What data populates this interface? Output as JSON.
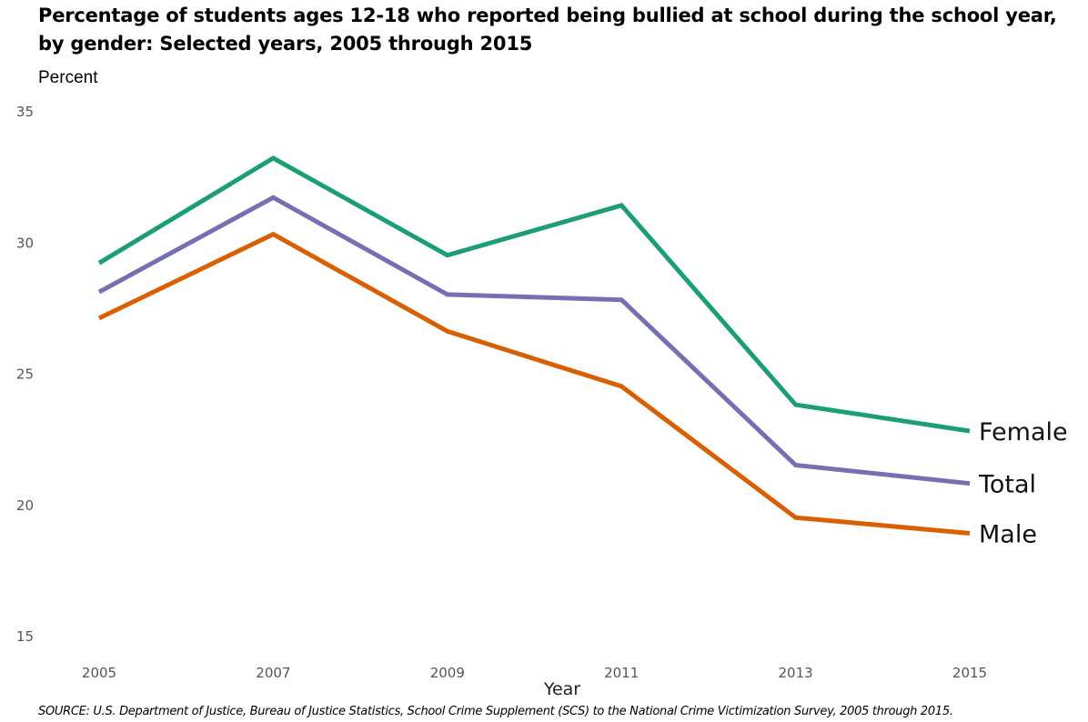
{
  "chart_data": {
    "type": "line",
    "title": "Percentage of students ages 12-18 who reported being bullied at school during the school year, by gender: Selected years, 2005 through 2015",
    "ylabel": "Percent",
    "xlabel": "Year",
    "source": "SOURCE: U.S. Department of Justice, Bureau of Justice Statistics, School Crime Supplement (SCS) to the National Crime Victimization Survey, 2005 through 2015.",
    "x": [
      "2005",
      "2007",
      "2009",
      "2011",
      "2013",
      "2015"
    ],
    "yticks": [
      "35",
      "30",
      "25",
      "20",
      "15"
    ],
    "ylim": [
      15,
      35
    ],
    "grid": false,
    "legend": "end-of-line labels",
    "series": [
      {
        "name": "Female",
        "color": "#1b9e77",
        "values": [
          29.2,
          33.2,
          29.5,
          31.4,
          23.8,
          22.8
        ]
      },
      {
        "name": "Total",
        "color": "#7570b3",
        "values": [
          28.1,
          31.7,
          28.0,
          27.8,
          21.5,
          20.8
        ]
      },
      {
        "name": "Male",
        "color": "#d95f02",
        "values": [
          27.1,
          30.3,
          26.6,
          24.5,
          19.5,
          18.9
        ]
      }
    ]
  }
}
